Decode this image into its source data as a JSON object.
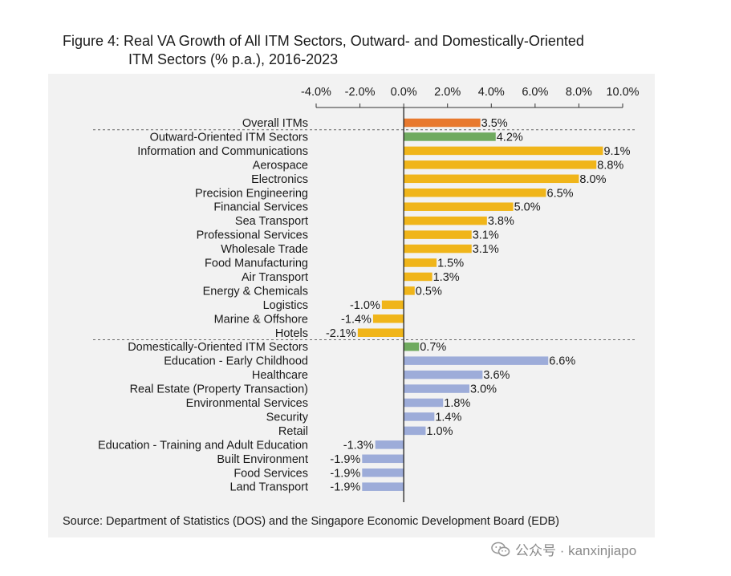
{
  "figure": {
    "title_line1": "Figure 4: Real VA Growth of All ITM Sectors, Outward- and Domestically-Oriented",
    "title_line2": "ITM Sectors (% p.a.), 2016-2023",
    "source": "Source: Department of Statistics (DOS) and the Singapore Economic Development Board (EDB)"
  },
  "watermark": {
    "text": "公众号 · kanxinjiapo"
  },
  "colors": {
    "overall": "#e8792e",
    "group": "#6faa5f",
    "outward": "#f0b51a",
    "domestic": "#9dacd9"
  },
  "chart_data": {
    "type": "bar",
    "orientation": "horizontal",
    "xlim": [
      -4.0,
      10.0
    ],
    "xticks": [
      "-4.0%",
      "-2.0%",
      "0.0%",
      "2.0%",
      "4.0%",
      "6.0%",
      "8.0%",
      "10.0%"
    ],
    "grid": false,
    "categories": [
      "Overall ITMs",
      "Outward-Oriented ITM Sectors",
      "Information and Communications",
      "Aerospace",
      "Electronics",
      "Precision Engineering",
      "Financial Services",
      "Sea Transport",
      "Professional Services",
      "Wholesale Trade",
      "Food Manufacturing",
      "Air Transport",
      "Energy & Chemicals",
      "Logistics",
      "Marine & Offshore",
      "Hotels",
      "Domestically-Oriented ITM Sectors",
      "Education - Early Childhood",
      "Healthcare",
      "Real Estate (Property Transaction)",
      "Environmental Services",
      "Security",
      "Retail",
      "Education - Training and Adult Education",
      "Built Environment",
      "Food Services",
      "Land Transport"
    ],
    "values": [
      3.5,
      4.2,
      9.1,
      8.8,
      8.0,
      6.5,
      5.0,
      3.8,
      3.1,
      3.1,
      1.5,
      1.3,
      0.5,
      -1.0,
      -1.4,
      -2.1,
      0.7,
      6.6,
      3.6,
      3.0,
      1.8,
      1.4,
      1.0,
      -1.3,
      -1.9,
      -1.9,
      -1.9
    ],
    "value_labels": [
      "3.5%",
      "4.2%",
      "9.1%",
      "8.8%",
      "8.0%",
      "6.5%",
      "5.0%",
      "3.8%",
      "3.1%",
      "3.1%",
      "1.5%",
      "1.3%",
      "0.5%",
      "-1.0%",
      "-1.4%",
      "-2.1%",
      "0.7%",
      "6.6%",
      "3.6%",
      "3.0%",
      "1.8%",
      "1.4%",
      "1.0%",
      "-1.3%",
      "-1.9%",
      "-1.9%",
      "-1.9%"
    ],
    "bar_groups": [
      "overall",
      "group",
      "outward",
      "outward",
      "outward",
      "outward",
      "outward",
      "outward",
      "outward",
      "outward",
      "outward",
      "outward",
      "outward",
      "outward",
      "outward",
      "outward",
      "group",
      "domestic",
      "domestic",
      "domestic",
      "domestic",
      "domestic",
      "domestic",
      "domestic",
      "domestic",
      "domestic",
      "domestic"
    ],
    "separators_after": [
      0,
      15
    ]
  }
}
